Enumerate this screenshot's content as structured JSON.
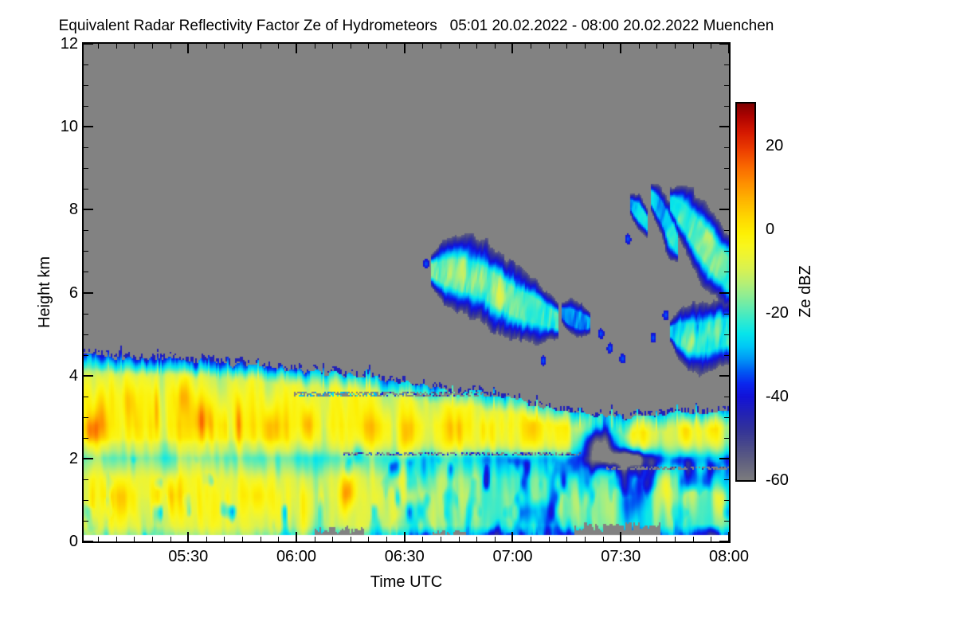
{
  "chart_data": {
    "type": "heatmap",
    "title": "Equivalent Radar Reflectivity Factor Ze of Hydrometeors   05:01 20.02.2022 - 08:00 20.02.2022 Muenchen",
    "instrument_quantity": "Equivalent Radar Reflectivity Factor Ze of Hydrometeors",
    "time_start": "05:01 20.02.2022",
    "time_end": "08:00 20.02.2022",
    "station": "Muenchen",
    "xlabel": "Time UTC",
    "ylabel": "Height km",
    "x_axis": {
      "tick_labels": [
        "05:30",
        "06:00",
        "06:30",
        "07:00",
        "07:30",
        "08:00"
      ],
      "tick_minutes": [
        29,
        59,
        89,
        119,
        149,
        179
      ],
      "span_minutes": 179,
      "minor_step_min": 5
    },
    "y_axis": {
      "range_km": [
        0,
        12
      ],
      "tick_labels": [
        "0",
        "2",
        "4",
        "6",
        "8",
        "10",
        "12"
      ],
      "tick_values": [
        0,
        2,
        4,
        6,
        8,
        10,
        12
      ],
      "minor_step_km": 0.5
    },
    "colorbar": {
      "label": "Ze dBZ",
      "range_dbz": [
        -60,
        30
      ],
      "tick_labels": [
        "20",
        "0",
        "-20",
        "-40",
        "-60"
      ],
      "tick_values": [
        20,
        0,
        -20,
        -40,
        -60
      ],
      "minor_step_dbz": 5,
      "colormap_stops": [
        [
          -60,
          "#7c7c7e"
        ],
        [
          -56,
          "#63637f"
        ],
        [
          -52,
          "#4b4b89"
        ],
        [
          -48,
          "#333399"
        ],
        [
          -44,
          "#2222b6"
        ],
        [
          -40,
          "#1212d8"
        ],
        [
          -37,
          "#0a26ee"
        ],
        [
          -34,
          "#005af3"
        ],
        [
          -31,
          "#0098f6"
        ],
        [
          -28,
          "#00c9f6"
        ],
        [
          -25,
          "#07e5eb"
        ],
        [
          -22,
          "#31ead0"
        ],
        [
          -19,
          "#60ebb2"
        ],
        [
          -16,
          "#8eed94"
        ],
        [
          -13,
          "#b5ef76"
        ],
        [
          -10,
          "#d5f156"
        ],
        [
          -7,
          "#eaf43a"
        ],
        [
          -4,
          "#f9f61e"
        ],
        [
          -1,
          "#fdf004"
        ],
        [
          3,
          "#fed500"
        ],
        [
          7,
          "#feb400"
        ],
        [
          11,
          "#fe8f00"
        ],
        [
          15,
          "#f96700"
        ],
        [
          19,
          "#ec3d00"
        ],
        [
          23,
          "#d61a00"
        ],
        [
          27,
          "#ad0300"
        ],
        [
          30,
          "#7f0000"
        ]
      ]
    },
    "no_echo_color": "#828282",
    "below_grid_color": "#ffffff",
    "grid_min_height_km": 0.15,
    "field": {
      "echo_top_km": [
        [
          0,
          4.5
        ],
        [
          12,
          4.42
        ],
        [
          25,
          4.38
        ],
        [
          38,
          4.3
        ],
        [
          50,
          4.2
        ],
        [
          62,
          4.1
        ],
        [
          75,
          3.98
        ],
        [
          88,
          3.85
        ],
        [
          98,
          3.72
        ],
        [
          108,
          3.6
        ],
        [
          118,
          3.45
        ],
        [
          126,
          3.28
        ],
        [
          134,
          3.12
        ],
        [
          142,
          3.04
        ],
        [
          152,
          3.0
        ],
        [
          162,
          3.06
        ],
        [
          172,
          3.1
        ],
        [
          179,
          3.12
        ]
      ],
      "profile_dbz": [
        [
          0.15,
          -11
        ],
        [
          0.35,
          -7
        ],
        [
          0.7,
          -5
        ],
        [
          1.1,
          -4.5
        ],
        [
          1.5,
          -7
        ],
        [
          1.8,
          -14
        ],
        [
          2.0,
          -18
        ],
        [
          2.2,
          -12
        ],
        [
          2.45,
          -7
        ],
        [
          2.8,
          -5
        ],
        [
          3.1,
          -6.5
        ],
        [
          3.5,
          -9
        ],
        [
          3.9,
          -13
        ],
        [
          4.2,
          -18
        ],
        [
          4.6,
          -24
        ]
      ],
      "hot_cells": [
        [
          2,
          2.65,
          2.5,
          0.35,
          13
        ],
        [
          4.5,
          2.9,
          1.6,
          0.6,
          11
        ],
        [
          9,
          1.1,
          5,
          0.5,
          9
        ],
        [
          13,
          3.4,
          2,
          0.5,
          8
        ],
        [
          20.3,
          3.2,
          0.9,
          0.8,
          15
        ],
        [
          23,
          1.2,
          4,
          0.4,
          8
        ],
        [
          27,
          3.5,
          2,
          0.4,
          7
        ],
        [
          33,
          2.95,
          2.5,
          0.45,
          12
        ],
        [
          43,
          2.8,
          1.0,
          0.7,
          16
        ],
        [
          48,
          1.1,
          4,
          0.45,
          8
        ],
        [
          52,
          2.7,
          2.5,
          0.5,
          9
        ],
        [
          62,
          2.85,
          2.2,
          0.4,
          8
        ],
        [
          73.5,
          1.2,
          2,
          0.42,
          20
        ],
        [
          80,
          2.7,
          2.5,
          0.4,
          7
        ],
        [
          90,
          2.6,
          2.2,
          0.4,
          7
        ],
        [
          103,
          2.65,
          2.5,
          0.4,
          7
        ],
        [
          112,
          2.6,
          2.2,
          0.4,
          7
        ],
        [
          124,
          2.65,
          2.2,
          0.35,
          7
        ],
        [
          140,
          2.7,
          2.5,
          0.4,
          7
        ],
        [
          152,
          2.6,
          2.5,
          0.4,
          8
        ],
        [
          161,
          1.35,
          1.8,
          0.45,
          14
        ],
        [
          167,
          2.6,
          3,
          0.45,
          12
        ],
        [
          168,
          1.2,
          2.5,
          0.5,
          9
        ],
        [
          174,
          2.7,
          2.5,
          0.4,
          9
        ],
        [
          176,
          1.0,
          2.2,
          0.45,
          8
        ],
        [
          76,
          2.15,
          1.5,
          0.25,
          -12
        ],
        [
          94,
          1.6,
          2,
          0.4,
          -10
        ],
        [
          152,
          0.9,
          3,
          0.6,
          -14
        ],
        [
          155,
          1.35,
          2.5,
          0.5,
          -12
        ]
      ],
      "holes": [
        {
          "tc": 143,
          "hc": 2.35,
          "rt": 4.5,
          "rh": 0.45,
          "depth": 55
        },
        {
          "tc": 151,
          "hc": 2.0,
          "rt": 6,
          "rh": 0.2,
          "depth": 40
        }
      ],
      "clutter_gaps": [
        {
          "t": [
            64,
            78
          ],
          "h": 0.3
        },
        {
          "t": [
            97,
            106
          ],
          "h": 0.25
        },
        {
          "t": [
            136,
            160
          ],
          "h": 0.4
        }
      ],
      "dropout_bands": [
        {
          "t": [
            58,
            131
          ],
          "h": [
            3.5,
            3.62
          ],
          "seed": 81
        },
        {
          "t": [
            72,
            138
          ],
          "h": [
            2.06,
            2.16
          ],
          "seed": 82
        },
        {
          "t": [
            145,
            179
          ],
          "h": [
            1.72,
            1.82
          ],
          "seed": 83
        }
      ],
      "clouds": [
        {
          "name": "midlevel-cloud-a",
          "seed": 101,
          "core_dbz": -21,
          "noise_amp": 9,
          "slant": 1.5,
          "path": [
            [
              96.5,
              6.55,
              0.25
            ],
            [
              100,
              6.5,
              0.5
            ],
            [
              104,
              6.45,
              0.65
            ],
            [
              108,
              6.35,
              0.7
            ],
            [
              112,
              6.2,
              0.7
            ],
            [
              116,
              5.95,
              0.65
            ],
            [
              120,
              5.75,
              0.6
            ],
            [
              124,
              5.6,
              0.55
            ],
            [
              128,
              5.45,
              0.45
            ],
            [
              131.5,
              5.3,
              0.3
            ]
          ],
          "cells": [
            [
              104,
              6.5,
              3,
              0.35,
              8
            ],
            [
              110,
              6.3,
              3,
              0.35,
              9
            ],
            [
              116,
              6.0,
              3,
              0.35,
              8
            ]
          ]
        },
        {
          "name": "midlevel-cloud-b",
          "seed": 102,
          "core_dbz": -31,
          "noise_amp": 7,
          "slant": 1.5,
          "path": [
            [
              132.5,
              5.5,
              0.2
            ],
            [
              135,
              5.4,
              0.35
            ],
            [
              138,
              5.3,
              0.35
            ],
            [
              140.5,
              5.25,
              0.2
            ]
          ],
          "cells": []
        },
        {
          "name": "cirrus-streak-1",
          "seed": 103,
          "core_dbz": -27,
          "noise_amp": 7,
          "slant": 2.2,
          "path": [
            [
              151.5,
              8.15,
              0.2
            ],
            [
              154,
              7.95,
              0.33
            ],
            [
              156.5,
              7.65,
              0.25
            ]
          ],
          "cells": []
        },
        {
          "name": "cirrus-streak-2",
          "seed": 104,
          "core_dbz": -26,
          "noise_amp": 7,
          "slant": 2.2,
          "path": [
            [
              157.5,
              8.3,
              0.25
            ],
            [
              160,
              8.0,
              0.45
            ],
            [
              162.5,
              7.55,
              0.5
            ],
            [
              165,
              7.1,
              0.35
            ]
          ],
          "cells": []
        },
        {
          "name": "cirrus-band",
          "seed": 105,
          "core_dbz": -24,
          "noise_amp": 8,
          "slant": 2.5,
          "path": [
            [
              162.5,
              8.2,
              0.25
            ],
            [
              166,
              7.9,
              0.5
            ],
            [
              169,
              7.55,
              0.65
            ],
            [
              172,
              7.2,
              0.7
            ],
            [
              175,
              6.85,
              0.7
            ],
            [
              179,
              6.45,
              0.65
            ]
          ],
          "cells": [
            [
              170,
              7.3,
              4,
              0.5,
              6
            ],
            [
              176,
              6.7,
              4,
              0.5,
              6
            ]
          ]
        },
        {
          "name": "altocumulus-patch",
          "seed": 106,
          "core_dbz": -24,
          "noise_amp": 8,
          "slant": 1.2,
          "path": [
            [
              162.5,
              5.05,
              0.15
            ],
            [
              165,
              5.0,
              0.45
            ],
            [
              169,
              4.9,
              0.62
            ],
            [
              173,
              4.92,
              0.6
            ],
            [
              176,
              5.0,
              0.58
            ],
            [
              179,
              5.05,
              0.55
            ]
          ],
          "cells": [
            [
              168,
              4.8,
              3,
              0.3,
              9
            ],
            [
              175,
              5.0,
              3,
              0.3,
              7
            ]
          ]
        }
      ],
      "specks": [
        [
          95,
          6.7
        ],
        [
          127.5,
          4.35
        ],
        [
          143.5,
          5.0
        ],
        [
          146,
          4.65
        ],
        [
          149.5,
          4.4
        ],
        [
          151,
          7.3
        ],
        [
          161.5,
          5.45
        ],
        [
          158,
          4.9
        ]
      ]
    }
  }
}
